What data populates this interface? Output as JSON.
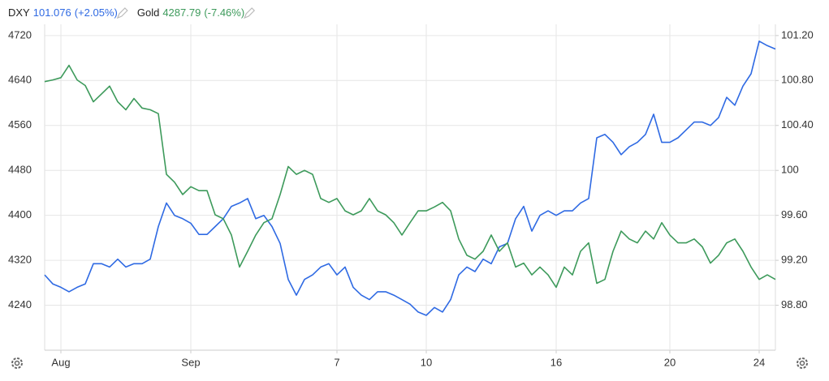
{
  "chart_data": {
    "type": "line",
    "categories": [
      null,
      null,
      "Aug",
      null,
      null,
      null,
      null,
      null,
      null,
      null,
      null,
      null,
      null,
      null,
      null,
      null,
      null,
      null,
      "Sep",
      null,
      null,
      null,
      null,
      null,
      null,
      null,
      null,
      null,
      null,
      null,
      null,
      null,
      null,
      null,
      null,
      null,
      "7",
      null,
      null,
      null,
      null,
      null,
      null,
      null,
      null,
      null,
      null,
      "10",
      null,
      null,
      null,
      null,
      null,
      null,
      null,
      null,
      null,
      null,
      null,
      null,
      null,
      null,
      null,
      "16",
      null,
      null,
      null,
      null,
      null,
      null,
      null,
      null,
      null,
      null,
      null,
      null,
      null,
      "20",
      null,
      null,
      null,
      null,
      null,
      null,
      null,
      null,
      null,
      null,
      "24",
      null,
      null
    ],
    "ylim": [
      4160,
      4740
    ],
    "yticks": [
      4240,
      4320,
      4400,
      4480,
      4560,
      4640,
      4720
    ],
    "y2lim": [
      98.4,
      101.3
    ],
    "y2ticks": [
      {
        "value": 98.8,
        "label": "98.80"
      },
      {
        "value": 99.2,
        "label": "99.20"
      },
      {
        "value": 99.6,
        "label": "99.60"
      },
      100,
      {
        "value": 100.4,
        "label": "100.40"
      },
      {
        "value": 100.8,
        "label": "100.80"
      },
      {
        "value": 101.2,
        "label": "101.20"
      }
    ],
    "grid": true,
    "series": [
      {
        "name": "DXY",
        "price": "101.076",
        "change": "(+2.05%)",
        "color": "#2f6ae3",
        "axis": "y2",
        "values": [
          99.07,
          98.99,
          98.96,
          98.92,
          98.96,
          98.99,
          99.17,
          99.17,
          99.14,
          99.21,
          99.14,
          99.17,
          99.17,
          99.21,
          99.5,
          99.71,
          99.6,
          99.57,
          99.53,
          99.43,
          99.43,
          99.5,
          99.57,
          99.68,
          99.71,
          99.75,
          99.57,
          99.6,
          99.5,
          99.35,
          99.03,
          98.89,
          99.03,
          99.07,
          99.14,
          99.17,
          99.07,
          99.14,
          98.96,
          98.89,
          98.85,
          98.92,
          98.92,
          98.89,
          98.85,
          98.81,
          98.74,
          98.71,
          98.78,
          98.74,
          98.85,
          99.07,
          99.14,
          99.1,
          99.21,
          99.17,
          99.32,
          99.35,
          99.57,
          99.68,
          99.46,
          99.6,
          99.64,
          99.6,
          99.64,
          99.64,
          99.71,
          99.75,
          100.29,
          100.32,
          100.25,
          100.14,
          100.21,
          100.25,
          100.32,
          100.5,
          100.25,
          100.25,
          100.29,
          100.36,
          100.43,
          100.43,
          100.4,
          100.47,
          100.65,
          100.58,
          100.75,
          100.86,
          101.15,
          101.11,
          101.08
        ]
      },
      {
        "name": "Gold",
        "price": "4287.79",
        "change": "(-7.46%)",
        "color": "#3d9a5b",
        "axis": "y",
        "values": [
          4638,
          4641,
          4645,
          4667,
          4641,
          4631,
          4602,
          4616,
          4630,
          4602,
          4588,
          4608,
          4591,
          4588,
          4581,
          4473,
          4459,
          4437,
          4451,
          4444,
          4444,
          4401,
          4394,
          4365,
          4308,
          4336,
          4365,
          4387,
          4394,
          4437,
          4487,
          4473,
          4480,
          4473,
          4430,
          4423,
          4430,
          4408,
          4401,
          4408,
          4430,
          4408,
          4401,
          4387,
          4365,
          4387,
          4408,
          4408,
          4415,
          4423,
          4408,
          4358,
          4329,
          4322,
          4336,
          4365,
          4336,
          4351,
          4308,
          4315,
          4294,
          4308,
          4294,
          4272,
          4308,
          4294,
          4336,
          4351,
          4279,
          4286,
          4336,
          4372,
          4358,
          4351,
          4372,
          4358,
          4387,
          4365,
          4351,
          4351,
          4358,
          4344,
          4315,
          4329,
          4351,
          4358,
          4336,
          4308,
          4286,
          4294,
          4286
        ]
      }
    ]
  }
}
